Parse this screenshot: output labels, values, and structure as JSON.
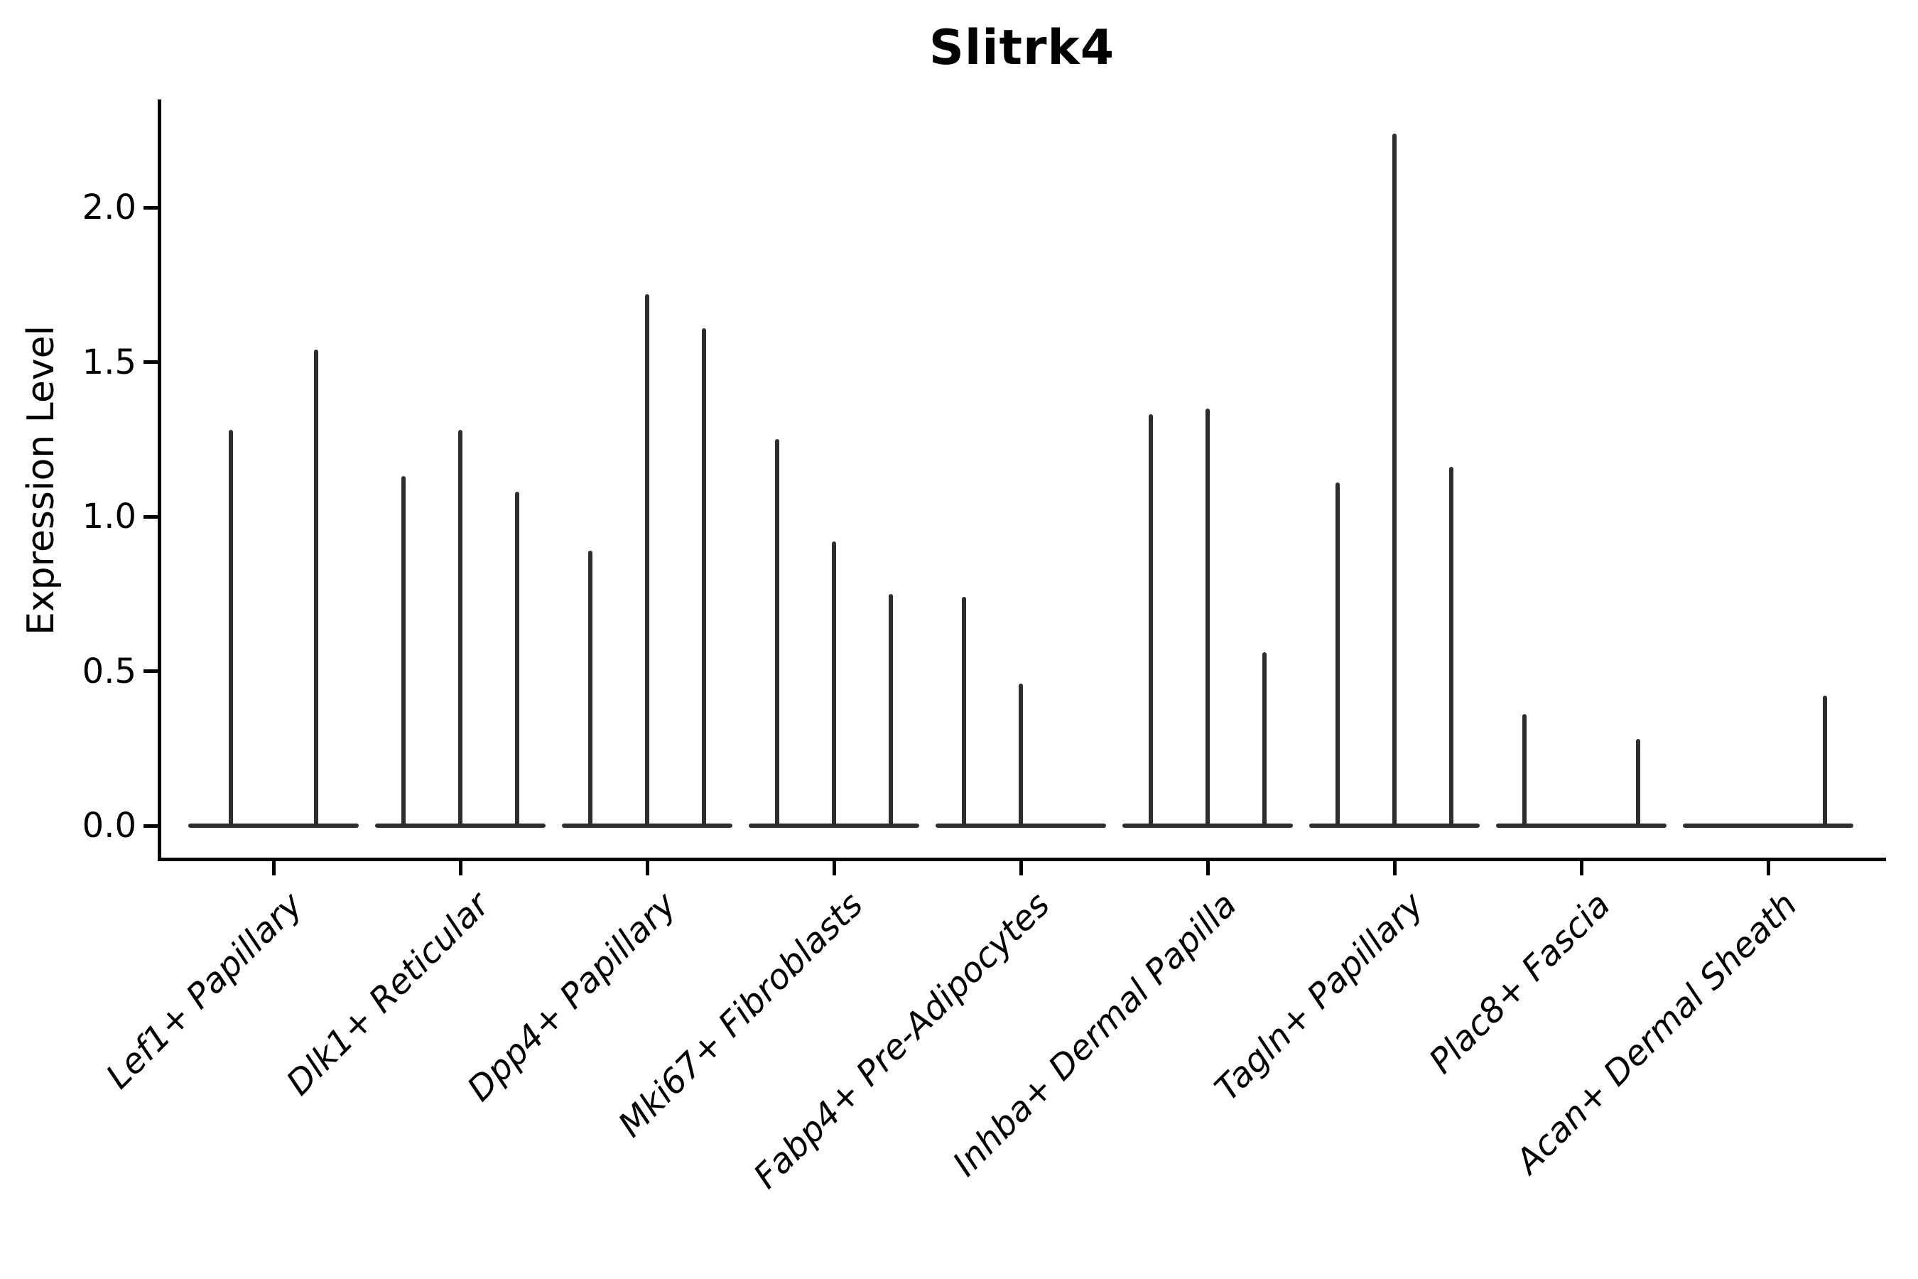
{
  "chart_data": {
    "type": "violin",
    "title": "Slitrk4",
    "xlabel": "",
    "ylabel": "Expression Level",
    "ylim": [
      -0.09,
      2.35
    ],
    "yticks": [
      0.0,
      0.5,
      1.0,
      1.5,
      2.0
    ],
    "ytick_labels": [
      "0.0",
      "0.5",
      "1.0",
      "1.5",
      "2.0"
    ],
    "grid": false,
    "legend": "none",
    "spines": [
      "left",
      "bottom"
    ],
    "description": "Very thin violin plots of Slitrk4 expression; each category shows 2-3 violins collapsed to a flat baseline at 0 with a thin spike up to the max expression value. A value of 0 means the violin is flat (no spike).",
    "categories": [
      "Lef1+ Papillary",
      "Dlk1+ Reticular",
      "Dpp4+ Papillary",
      "Mki67+ Fibroblasts",
      "Fabp4+ Pre-Adipocytes",
      "Inhba+ Dermal Papilla",
      "Tagln+ Papillary",
      "Plac8+ Fascia",
      "Acan+ Dermal Sheath"
    ],
    "groups": [
      {
        "label": "Lef1+ Papillary",
        "violin_max_expression": [
          1.28,
          1.54
        ]
      },
      {
        "label": "Dlk1+ Reticular",
        "violin_max_expression": [
          1.13,
          1.28,
          1.08
        ]
      },
      {
        "label": "Dpp4+ Papillary",
        "violin_max_expression": [
          0.89,
          1.72,
          1.61
        ]
      },
      {
        "label": "Mki67+ Fibroblasts",
        "violin_max_expression": [
          1.25,
          0.92,
          0.75
        ]
      },
      {
        "label": "Fabp4+ Pre-Adipocytes",
        "violin_max_expression": [
          0.74,
          0.46,
          0
        ]
      },
      {
        "label": "Inhba+ Dermal Papilla",
        "violin_max_expression": [
          1.33,
          1.35,
          0.56
        ]
      },
      {
        "label": "Tagln+ Papillary",
        "violin_max_expression": [
          1.11,
          2.24,
          1.16
        ]
      },
      {
        "label": "Plac8+ Fascia",
        "violin_max_expression": [
          0.36,
          0,
          0.28
        ]
      },
      {
        "label": "Acan+ Dermal Sheath",
        "violin_max_expression": [
          0,
          0,
          0.42
        ]
      }
    ]
  }
}
